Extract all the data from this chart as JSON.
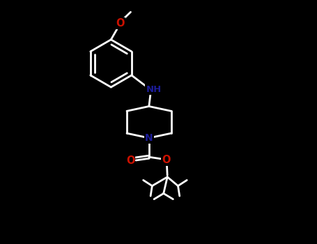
{
  "bg_color": "#000000",
  "bond_color": "#ffffff",
  "N_color": "#1c1c99",
  "O_color": "#cc1100",
  "bond_width": 2.0,
  "fig_width": 4.55,
  "fig_height": 3.5,
  "dpi": 100,
  "xlim": [
    0,
    10
  ],
  "ylim": [
    0,
    7.7
  ]
}
